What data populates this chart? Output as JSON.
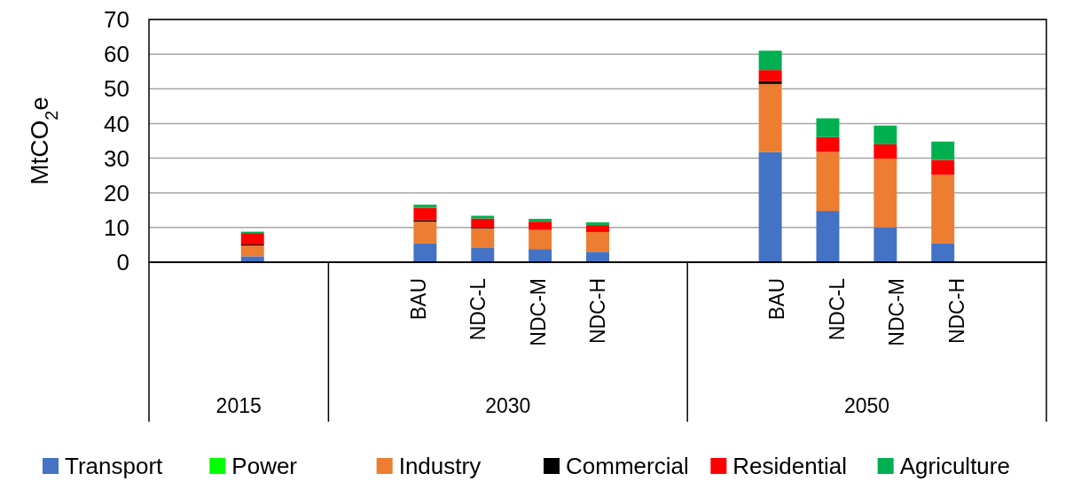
{
  "chart_data": {
    "type": "bar",
    "stacked": true,
    "ylabel": "MtCO$_{2}$e",
    "categories": [
      null,
      null,
      null,
      null,
      "BAU",
      "NDC-L",
      "NDC-M",
      "NDC-H",
      null,
      null,
      "BAU",
      "NDC-L",
      "NDC-M",
      "NDC-H",
      null
    ],
    "series": [
      {
        "name": "Transport",
        "color": "#4472c4",
        "values": [
          null,
          1.7,
          null,
          null,
          5.4,
          4.1,
          3.8,
          3.0,
          null,
          null,
          31.8,
          14.8,
          10.1,
          5.4,
          null
        ]
      },
      {
        "name": "Power",
        "color": "#00ff00",
        "values": [
          null,
          0,
          null,
          null,
          0,
          0,
          0,
          0,
          null,
          null,
          0,
          0,
          0,
          0,
          null
        ]
      },
      {
        "name": "Industry",
        "color": "#ed7d31",
        "values": [
          null,
          3.1,
          null,
          null,
          6.3,
          5.6,
          5.5,
          5.7,
          null,
          null,
          19.6,
          17.0,
          19.8,
          19.8,
          null
        ]
      },
      {
        "name": "Commercial",
        "color": "#000000",
        "values": [
          null,
          0.3,
          null,
          null,
          0.4,
          0.2,
          null,
          0,
          null,
          null,
          0.8,
          null,
          null,
          0,
          null
        ]
      },
      {
        "name": "Residential",
        "color": "#ff0000",
        "values": [
          null,
          3.3,
          null,
          null,
          3.6,
          2.7,
          2.4,
          2.0,
          null,
          null,
          3.2,
          4.3,
          4.1,
          4.3,
          null
        ]
      },
      {
        "name": "Agriculture",
        "color": "#00b050",
        "values": [
          null,
          0.4,
          null,
          null,
          0.9,
          0.8,
          0.8,
          0.8,
          null,
          null,
          5.6,
          5.4,
          5.4,
          5.3,
          null
        ]
      }
    ],
    "ylim": [
      0,
      70
    ],
    "yticks": [
      0,
      10,
      20,
      30,
      40,
      50,
      60,
      70
    ],
    "grid": "y",
    "legend": "bottom",
    "annotations": [
      "2015",
      "2030",
      "2050"
    ]
  }
}
